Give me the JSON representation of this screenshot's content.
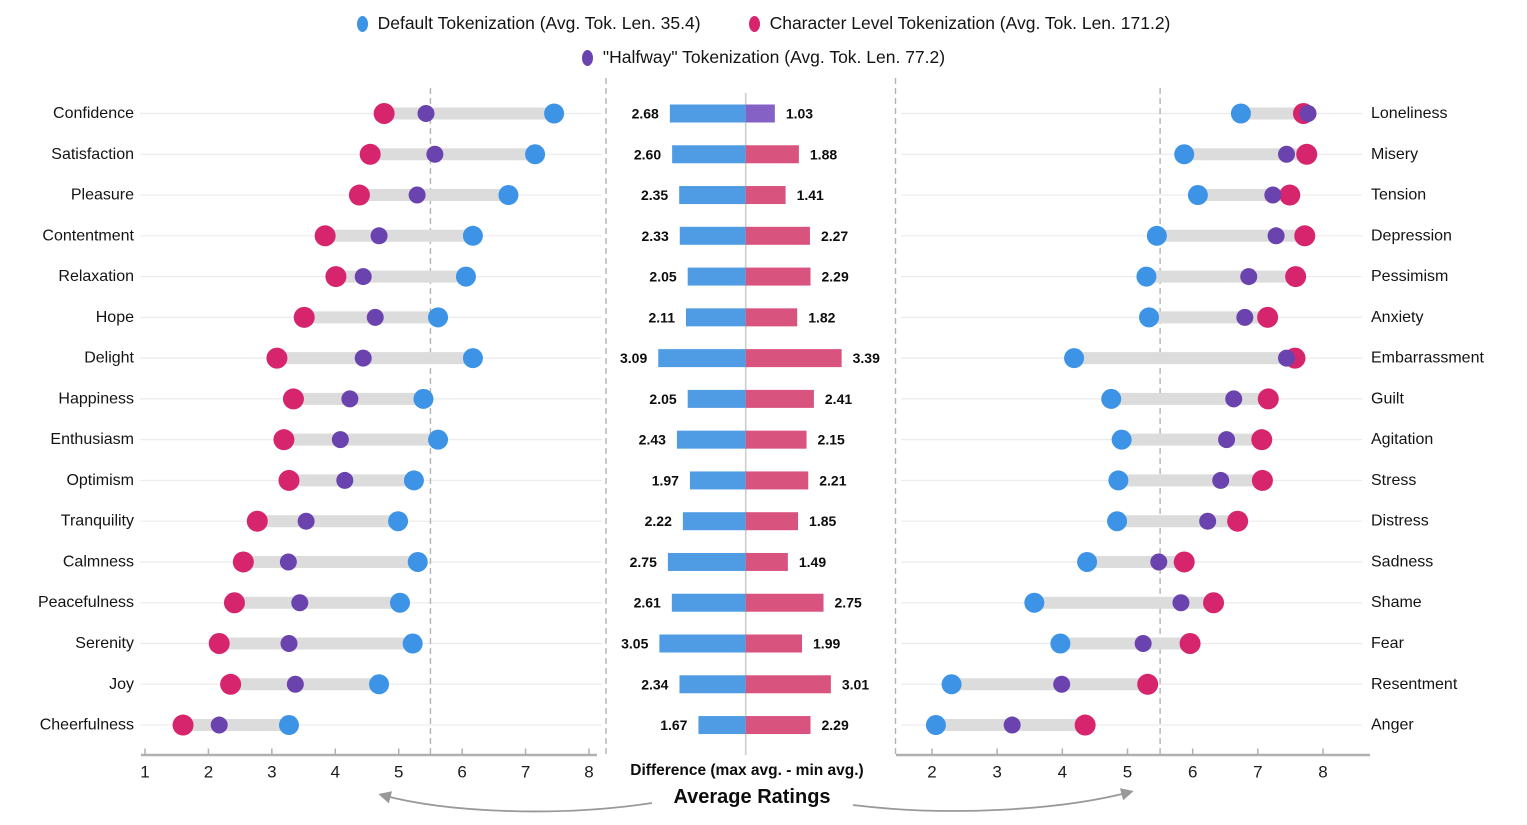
{
  "legend": [
    {
      "key": "default",
      "label": "Default Tokenization (Avg. Tok. Len. 35.4)",
      "color": "#3d93e6"
    },
    {
      "key": "character",
      "label": "Character Level Tokenization (Avg. Tok. Len. 171.2)",
      "color": "#d6246d"
    },
    {
      "key": "halfway",
      "label": "\"Halfway\" Tokenization (Avg. Tok. Len. 77.2)",
      "color": "#6a43ae"
    }
  ],
  "colors": {
    "default_dot": "#3d93e6",
    "character_dot": "#d6246d",
    "halfway_dot": "#6a43ae",
    "default_bar": "#4f9ce4",
    "character_bar": "#d9537f",
    "halfway_bar": "#8561c5",
    "connector": "#dcdcdc",
    "gridline": "#ebebeb",
    "axis": "#b0b0b0",
    "dashed": "#b3b3b3",
    "center_line": "#cccccc",
    "arrow": "#999999",
    "text": "#141414"
  },
  "center": {
    "axis_label": "Difference (max avg. - min avg.)"
  },
  "bottom_label": "Average Ratings",
  "chart_data": {
    "type": "dumbbell-diverging-bar",
    "series_names": [
      "Default Tokenization",
      "Character Level Tokenization",
      "\"Halfway\" Tokenization"
    ],
    "left_axis": {
      "min": 1,
      "max": 8,
      "ticks": [
        1,
        2,
        3,
        4,
        5,
        6,
        7,
        8
      ],
      "dashed_reference": 5.5
    },
    "right_axis": {
      "min": 2,
      "max": 8,
      "ticks": [
        2,
        3,
        4,
        5,
        6,
        7,
        8
      ],
      "dashed_reference": 5.5
    },
    "rows": [
      {
        "positive": "Confidence",
        "negative": "Loneliness",
        "pos": {
          "character": 4.77,
          "halfway": 5.43,
          "default": 7.45
        },
        "neg": {
          "default": 6.74,
          "halfway": 7.77,
          "character": 7.7
        },
        "diff_pos": "2.68",
        "diff_neg": "1.03",
        "pos_bar": "default",
        "neg_bar": "halfway"
      },
      {
        "positive": "Satisfaction",
        "negative": "Misery",
        "pos": {
          "character": 4.55,
          "halfway": 5.57,
          "default": 7.15
        },
        "neg": {
          "default": 5.87,
          "halfway": 7.44,
          "character": 7.75
        },
        "diff_pos": "2.60",
        "diff_neg": "1.88",
        "pos_bar": "default",
        "neg_bar": "character"
      },
      {
        "positive": "Pleasure",
        "negative": "Tension",
        "pos": {
          "character": 4.38,
          "halfway": 5.29,
          "default": 6.73
        },
        "neg": {
          "default": 6.08,
          "halfway": 7.23,
          "character": 7.49
        },
        "diff_pos": "2.35",
        "diff_neg": "1.41",
        "pos_bar": "default",
        "neg_bar": "character"
      },
      {
        "positive": "Contentment",
        "negative": "Depression",
        "pos": {
          "character": 3.84,
          "halfway": 4.69,
          "default": 6.17
        },
        "neg": {
          "default": 5.45,
          "halfway": 7.28,
          "character": 7.72
        },
        "diff_pos": "2.33",
        "diff_neg": "2.27",
        "pos_bar": "default",
        "neg_bar": "character"
      },
      {
        "positive": "Relaxation",
        "negative": "Pessimism",
        "pos": {
          "character": 4.01,
          "halfway": 4.44,
          "default": 6.06
        },
        "neg": {
          "default": 5.29,
          "halfway": 6.86,
          "character": 7.58
        },
        "diff_pos": "2.05",
        "diff_neg": "2.29",
        "pos_bar": "default",
        "neg_bar": "character"
      },
      {
        "positive": "Hope",
        "negative": "Anxiety",
        "pos": {
          "character": 3.51,
          "halfway": 4.63,
          "default": 5.62
        },
        "neg": {
          "default": 5.33,
          "halfway": 6.8,
          "character": 7.15
        },
        "diff_pos": "2.11",
        "diff_neg": "1.82",
        "pos_bar": "default",
        "neg_bar": "character"
      },
      {
        "positive": "Delight",
        "negative": "Embarrassment",
        "pos": {
          "character": 3.08,
          "halfway": 4.44,
          "default": 6.17
        },
        "neg": {
          "default": 4.18,
          "halfway": 7.44,
          "character": 7.57
        },
        "diff_pos": "3.09",
        "diff_neg": "3.39",
        "pos_bar": "default",
        "neg_bar": "character"
      },
      {
        "positive": "Happiness",
        "negative": "Guilt",
        "pos": {
          "character": 3.34,
          "halfway": 4.23,
          "default": 5.39
        },
        "neg": {
          "default": 4.75,
          "halfway": 6.63,
          "character": 7.16
        },
        "diff_pos": "2.05",
        "diff_neg": "2.41",
        "pos_bar": "default",
        "neg_bar": "character"
      },
      {
        "positive": "Enthusiasm",
        "negative": "Agitation",
        "pos": {
          "character": 3.19,
          "halfway": 4.08,
          "default": 5.62
        },
        "neg": {
          "default": 4.91,
          "halfway": 6.52,
          "character": 7.06
        },
        "diff_pos": "2.43",
        "diff_neg": "2.15",
        "pos_bar": "default",
        "neg_bar": "character"
      },
      {
        "positive": "Optimism",
        "negative": "Stress",
        "pos": {
          "character": 3.27,
          "halfway": 4.15,
          "default": 5.24
        },
        "neg": {
          "default": 4.86,
          "halfway": 6.43,
          "character": 7.07
        },
        "diff_pos": "1.97",
        "diff_neg": "2.21",
        "pos_bar": "default",
        "neg_bar": "character"
      },
      {
        "positive": "Tranquility",
        "negative": "Distress",
        "pos": {
          "character": 2.77,
          "halfway": 3.54,
          "default": 4.99
        },
        "neg": {
          "default": 4.84,
          "halfway": 6.23,
          "character": 6.69
        },
        "diff_pos": "2.22",
        "diff_neg": "1.85",
        "pos_bar": "default",
        "neg_bar": "character"
      },
      {
        "positive": "Calmness",
        "negative": "Sadness",
        "pos": {
          "character": 2.55,
          "halfway": 3.26,
          "default": 5.3
        },
        "neg": {
          "default": 4.38,
          "halfway": 5.48,
          "character": 5.87
        },
        "diff_pos": "2.75",
        "diff_neg": "1.49",
        "pos_bar": "default",
        "neg_bar": "character"
      },
      {
        "positive": "Peacefulness",
        "negative": "Shame",
        "pos": {
          "character": 2.41,
          "halfway": 3.44,
          "default": 5.02
        },
        "neg": {
          "default": 3.57,
          "halfway": 5.82,
          "character": 6.32
        },
        "diff_pos": "2.61",
        "diff_neg": "2.75",
        "pos_bar": "default",
        "neg_bar": "character"
      },
      {
        "positive": "Serenity",
        "negative": "Fear",
        "pos": {
          "character": 2.17,
          "halfway": 3.27,
          "default": 5.22
        },
        "neg": {
          "default": 3.97,
          "halfway": 5.24,
          "character": 5.96
        },
        "diff_pos": "3.05",
        "diff_neg": "1.99",
        "pos_bar": "default",
        "neg_bar": "character"
      },
      {
        "positive": "Joy",
        "negative": "Resentment",
        "pos": {
          "character": 2.35,
          "halfway": 3.37,
          "default": 4.69
        },
        "neg": {
          "default": 2.3,
          "halfway": 3.99,
          "character": 5.31
        },
        "diff_pos": "2.34",
        "diff_neg": "3.01",
        "pos_bar": "default",
        "neg_bar": "character"
      },
      {
        "positive": "Cheerfulness",
        "negative": "Anger",
        "pos": {
          "character": 1.6,
          "halfway": 2.17,
          "default": 3.27
        },
        "neg": {
          "default": 2.06,
          "halfway": 3.23,
          "character": 4.35
        },
        "diff_pos": "1.67",
        "diff_neg": "2.29",
        "pos_bar": "default",
        "neg_bar": "character"
      }
    ]
  }
}
